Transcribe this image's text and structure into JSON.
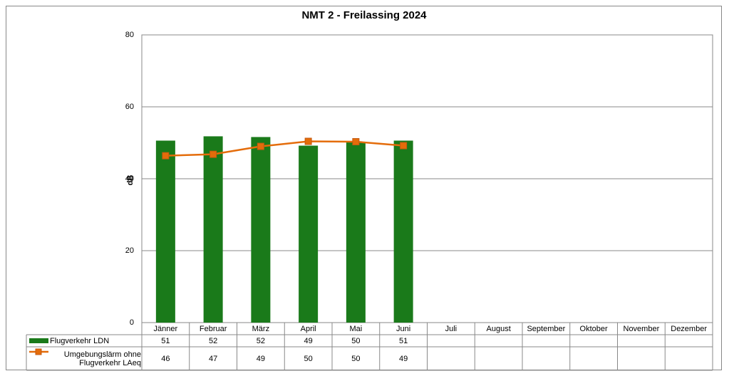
{
  "chart_data": {
    "type": "bar-line-table",
    "title": "NMT 2 - Freilassing 2024",
    "y_label": "dB",
    "categories": [
      "Jänner",
      "Februar",
      "März",
      "April",
      "Mai",
      "Juni",
      "Juli",
      "August",
      "September",
      "Oktober",
      "November",
      "Dezember"
    ],
    "series": [
      {
        "name": "Flugverkehr LDN",
        "type": "bar",
        "color": "#1a7a1a",
        "values": [
          50.6,
          51.8,
          51.6,
          49.2,
          50.2,
          50.6,
          null,
          null,
          null,
          null,
          null,
          null
        ],
        "value_labels": [
          "51",
          "52",
          "52",
          "49",
          "50",
          "51",
          null,
          null,
          null,
          null,
          null,
          null
        ]
      },
      {
        "name": "Umgebungslärm ohne Flugverkehr LAeq",
        "type": "line",
        "color": "#e46c0a",
        "values": [
          46.4,
          46.8,
          49.0,
          50.4,
          50.3,
          49.2,
          null,
          null,
          null,
          null,
          null,
          null
        ],
        "value_labels": [
          "46",
          "47",
          "49",
          "50",
          "50",
          "49",
          null,
          null,
          null,
          null,
          null,
          null
        ]
      }
    ],
    "ylim": [
      0,
      80
    ],
    "yticks": [
      0,
      20,
      40,
      60,
      80
    ],
    "grid": true
  }
}
